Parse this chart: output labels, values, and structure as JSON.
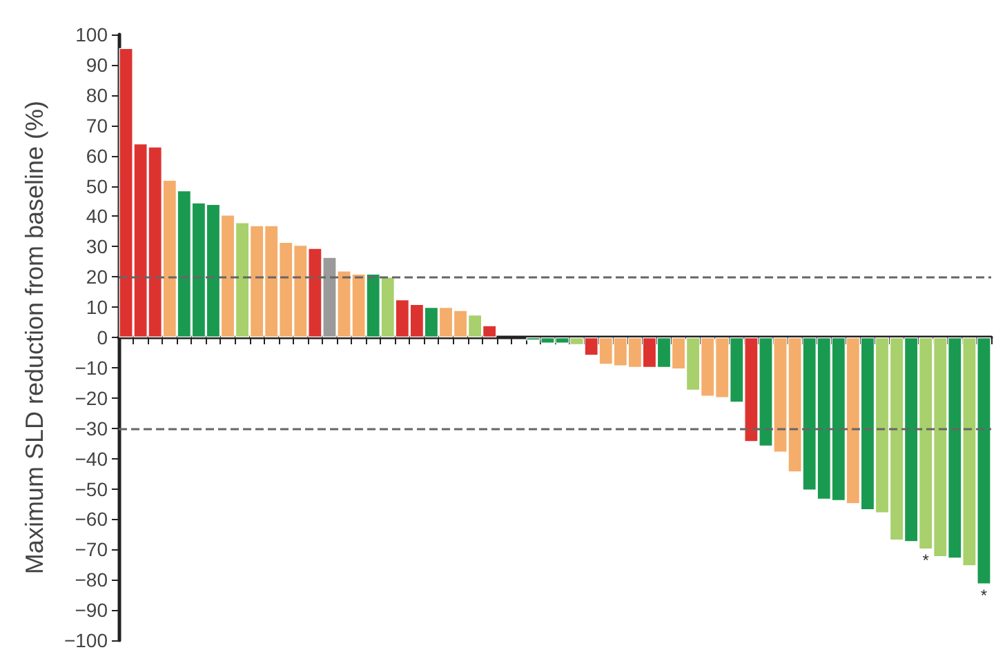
{
  "chart_data": {
    "type": "bar",
    "ylabel": "Maximum SLD reduction from baseline (%)",
    "categories": [
      null,
      null,
      null,
      null,
      null,
      null,
      null,
      null,
      null,
      null,
      null,
      null,
      null,
      null,
      null,
      null,
      null,
      null,
      null,
      null,
      null,
      null,
      null,
      null,
      null,
      null,
      null,
      null,
      null,
      null,
      null,
      null,
      null,
      null,
      null,
      null,
      null,
      null,
      null,
      null,
      null,
      null,
      null,
      null,
      null,
      null,
      null,
      null,
      null,
      null,
      null,
      null,
      null,
      null,
      null,
      null,
      null,
      null,
      null,
      null
    ],
    "values": [
      95.5,
      64,
      63,
      52,
      48.5,
      44.5,
      44,
      40.5,
      38,
      37,
      37,
      31.5,
      30.5,
      29.5,
      26.5,
      22,
      21,
      21,
      20,
      12.5,
      11,
      10,
      10,
      9,
      7.5,
      4,
      null,
      null,
      -1,
      -2,
      -2,
      -2.5,
      -6,
      -9,
      -9.5,
      -10,
      -10,
      -10,
      -10.5,
      -17.5,
      -19.5,
      -20,
      -21.5,
      -34.5,
      -36,
      -38,
      -44.5,
      -50.5,
      -53.5,
      -54,
      -55,
      -57,
      -58,
      -67,
      -67.5,
      -70,
      -72.5,
      -73,
      -75.5,
      -81.5
    ],
    "colors": [
      "#dd3330",
      "#dd3330",
      "#dd3330",
      "#f5ad6b",
      "#1a9a50",
      "#1a9a50",
      "#1a9a50",
      "#f5ad6b",
      "#a8d06c",
      "#f5ad6b",
      "#f5ad6b",
      "#f5ad6b",
      "#f5ad6b",
      "#dd3330",
      "#9a9a9a",
      "#f5ad6b",
      "#f5ad6b",
      "#1a9a50",
      "#a8d06c",
      "#dd3330",
      "#dd3330",
      "#1a9a50",
      "#f5ad6b",
      "#f5ad6b",
      "#a8d06c",
      "#dd3330",
      null,
      null,
      "#1a9a50",
      "#1a9a50",
      "#1a9a50",
      "#a8d06c",
      "#dd3330",
      "#f5ad6b",
      "#f5ad6b",
      "#f5ad6b",
      "#dd3330",
      "#1a9a50",
      "#f5ad6b",
      "#a8d06c",
      "#f5ad6b",
      "#f5ad6b",
      "#1a9a50",
      "#dd3330",
      "#1a9a50",
      "#f5ad6b",
      "#f5ad6b",
      "#1a9a50",
      "#1a9a50",
      "#1a9a50",
      "#f5ad6b",
      "#1a9a50",
      "#a8d06c",
      "#a8d06c",
      "#1a9a50",
      "#a8d06c",
      "#a8d06c",
      "#1a9a50",
      "#a8d06c",
      "#1a9a50"
    ],
    "ylim": [
      -100,
      100
    ],
    "yticks": [
      {
        "value": -100,
        "label": "−100"
      },
      {
        "value": -90,
        "label": "−90"
      },
      {
        "value": -80,
        "label": "−80"
      },
      {
        "value": -70,
        "label": "−70"
      },
      {
        "value": -60,
        "label": "−60"
      },
      {
        "value": -50,
        "label": "−50"
      },
      {
        "value": -40,
        "label": "−40"
      },
      {
        "value": -30,
        "label": "−30"
      },
      {
        "value": -20,
        "label": "−20"
      },
      {
        "value": -10,
        "label": "−10"
      },
      0,
      10,
      20,
      30,
      40,
      50,
      60,
      70,
      80,
      90,
      100
    ],
    "ref_lines": [
      {
        "axis": "y",
        "value": 20,
        "color": "#666666",
        "line_style": "dashed"
      },
      {
        "axis": "y",
        "value": -30,
        "color": "#666666",
        "line_style": "dashed"
      }
    ],
    "annotations": [
      {
        "text": "*",
        "y": -70
      },
      {
        "text": "*",
        "y": -81.5
      }
    ],
    "tick_labels": "y",
    "grid": false
  }
}
